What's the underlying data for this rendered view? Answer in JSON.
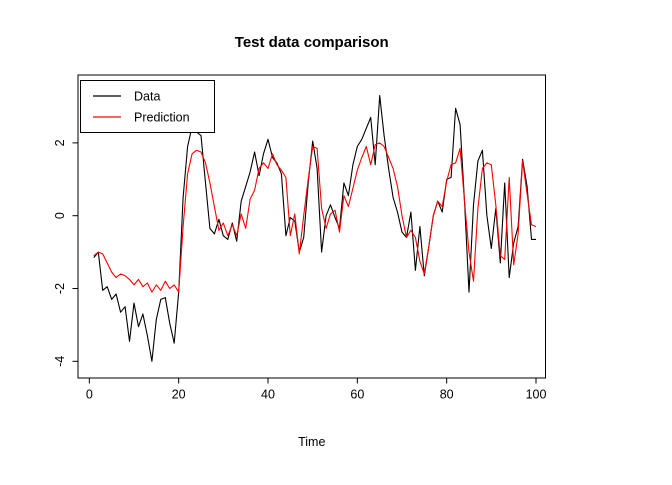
{
  "figure": {
    "title": "Test data comparison",
    "xlabel": "Time"
  },
  "axes": {
    "x_ticks": [
      0,
      20,
      40,
      60,
      80,
      100
    ],
    "y_ticks": [
      -4,
      -2,
      0,
      2
    ]
  },
  "legend": {
    "position": "topleft",
    "items": [
      {
        "label": "Data",
        "color": "#000000"
      },
      {
        "label": "Prediction",
        "color": "#ff0000"
      }
    ]
  },
  "chart_data": {
    "type": "line",
    "title": "Test data comparison",
    "xlabel": "Time",
    "ylabel": "",
    "x_start": 1,
    "x_step": 1,
    "xlim": [
      -2.5,
      102
    ],
    "ylim": [
      -4.46,
      3.87
    ],
    "grid": false,
    "legend_position": "topleft",
    "series": [
      {
        "name": "Data",
        "color": "#000000",
        "values": [
          -1.15,
          -1.0,
          -2.05,
          -1.95,
          -2.3,
          -2.15,
          -2.65,
          -2.5,
          -3.45,
          -2.4,
          -3.05,
          -2.7,
          -3.3,
          -4.0,
          -2.85,
          -2.3,
          -2.25,
          -2.95,
          -3.5,
          -2.1,
          0.5,
          1.9,
          2.45,
          2.3,
          2.2,
          0.9,
          -0.35,
          -0.5,
          -0.1,
          -0.55,
          -0.65,
          -0.2,
          -0.7,
          0.4,
          0.8,
          1.2,
          1.75,
          1.1,
          1.7,
          2.1,
          1.6,
          1.45,
          1.15,
          -0.55,
          -0.05,
          -0.15,
          -1.0,
          -0.6,
          0.9,
          2.05,
          1.3,
          -1.0,
          0.0,
          0.3,
          -0.05,
          -0.35,
          0.9,
          0.55,
          1.4,
          1.9,
          2.1,
          2.4,
          2.7,
          1.4,
          3.3,
          2.2,
          1.3,
          0.5,
          0.1,
          -0.45,
          -0.6,
          0.1,
          -1.5,
          -0.3,
          -1.65,
          -0.85,
          0.0,
          0.4,
          0.1,
          1.0,
          1.05,
          2.95,
          2.5,
          0.4,
          -2.1,
          0.3,
          1.5,
          1.8,
          0.0,
          -0.9,
          0.2,
          -1.3,
          0.9,
          -1.7,
          -0.75,
          -0.3,
          1.55,
          0.8,
          -0.65,
          -0.65
        ]
      },
      {
        "name": "Prediction",
        "color": "#ff0000",
        "values": [
          -1.1,
          -1.0,
          -1.05,
          -1.3,
          -1.55,
          -1.7,
          -1.6,
          -1.65,
          -1.75,
          -1.9,
          -1.75,
          -1.95,
          -1.85,
          -2.1,
          -1.9,
          -2.05,
          -1.8,
          -2.0,
          -1.9,
          -2.1,
          -0.3,
          1.15,
          1.7,
          1.8,
          1.75,
          1.45,
          0.9,
          0.25,
          -0.4,
          -0.2,
          -0.55,
          -0.25,
          -0.55,
          0.05,
          -0.35,
          0.45,
          0.7,
          1.3,
          1.45,
          1.3,
          1.7,
          1.4,
          1.25,
          1.05,
          -0.55,
          0.05,
          -1.05,
          0.0,
          1.0,
          1.9,
          1.85,
          0.2,
          -0.35,
          0.05,
          0.15,
          -0.45,
          0.55,
          0.25,
          0.75,
          1.25,
          1.6,
          1.9,
          1.4,
          1.95,
          2.0,
          1.9,
          1.6,
          1.3,
          0.8,
          0.0,
          -0.6,
          -0.4,
          -0.6,
          -1.25,
          -1.6,
          -0.85,
          0.0,
          0.4,
          0.25,
          0.95,
          1.4,
          1.45,
          1.85,
          0.4,
          -1.0,
          -1.8,
          0.2,
          1.3,
          1.45,
          1.4,
          0.3,
          -1.1,
          -1.2,
          1.05,
          -1.35,
          -0.5,
          1.5,
          0.6,
          -0.25,
          -0.3
        ]
      }
    ]
  }
}
